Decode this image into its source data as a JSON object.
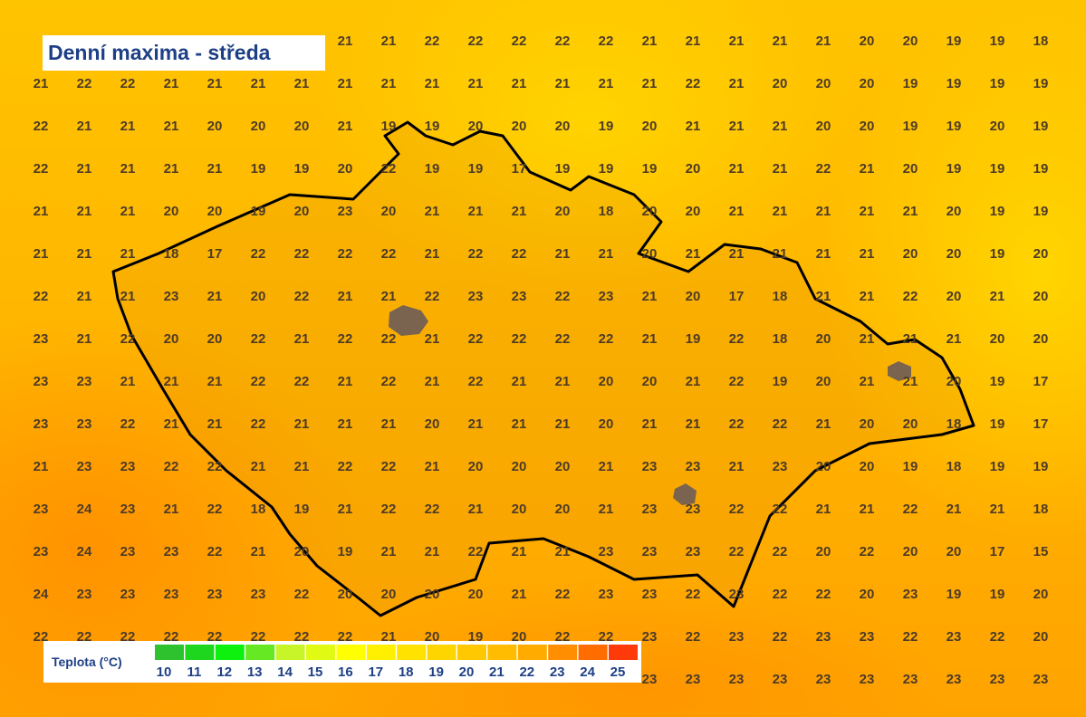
{
  "title": "Denní maxima - středa",
  "grid": {
    "rows": [
      [
        null,
        null,
        null,
        null,
        null,
        null,
        null,
        21,
        21,
        22,
        22,
        22,
        22,
        22,
        21,
        21,
        21,
        21,
        21,
        20,
        20,
        19,
        19,
        18
      ],
      [
        21,
        22,
        22,
        21,
        21,
        21,
        21,
        21,
        21,
        21,
        21,
        21,
        21,
        21,
        21,
        22,
        21,
        20,
        20,
        20,
        19,
        19,
        19,
        19
      ],
      [
        22,
        21,
        21,
        21,
        20,
        20,
        20,
        21,
        19,
        19,
        20,
        20,
        20,
        19,
        20,
        21,
        21,
        21,
        20,
        20,
        19,
        19,
        20,
        19
      ],
      [
        22,
        21,
        21,
        21,
        21,
        19,
        19,
        20,
        22,
        19,
        19,
        17,
        19,
        19,
        19,
        20,
        21,
        21,
        22,
        21,
        20,
        19,
        19,
        19
      ],
      [
        21,
        21,
        21,
        20,
        20,
        19,
        20,
        23,
        20,
        21,
        21,
        21,
        20,
        18,
        20,
        20,
        21,
        21,
        21,
        21,
        21,
        20,
        19,
        19
      ],
      [
        21,
        21,
        21,
        18,
        17,
        22,
        22,
        22,
        22,
        21,
        22,
        22,
        21,
        21,
        20,
        21,
        21,
        21,
        21,
        21,
        20,
        20,
        19,
        20
      ],
      [
        22,
        21,
        21,
        23,
        21,
        20,
        22,
        21,
        21,
        22,
        23,
        23,
        22,
        23,
        21,
        20,
        17,
        18,
        21,
        21,
        22,
        20,
        21,
        20
      ],
      [
        23,
        21,
        22,
        20,
        20,
        22,
        21,
        22,
        22,
        21,
        22,
        22,
        22,
        22,
        21,
        19,
        22,
        18,
        20,
        21,
        21,
        21,
        20,
        20
      ],
      [
        23,
        23,
        21,
        21,
        21,
        22,
        22,
        21,
        22,
        21,
        22,
        21,
        21,
        20,
        20,
        21,
        22,
        19,
        20,
        21,
        21,
        20,
        19,
        17
      ],
      [
        23,
        23,
        22,
        21,
        21,
        22,
        21,
        21,
        21,
        20,
        21,
        21,
        21,
        20,
        21,
        21,
        22,
        22,
        21,
        20,
        20,
        18,
        19,
        17
      ],
      [
        21,
        23,
        23,
        22,
        22,
        21,
        21,
        22,
        22,
        21,
        20,
        20,
        20,
        21,
        23,
        23,
        21,
        23,
        20,
        20,
        19,
        18,
        19,
        19
      ],
      [
        23,
        24,
        23,
        21,
        22,
        18,
        19,
        21,
        22,
        22,
        21,
        20,
        20,
        21,
        23,
        23,
        22,
        22,
        21,
        21,
        22,
        21,
        21,
        18
      ],
      [
        23,
        24,
        23,
        23,
        22,
        21,
        20,
        19,
        21,
        21,
        22,
        21,
        21,
        23,
        23,
        23,
        22,
        22,
        20,
        22,
        20,
        20,
        17,
        15
      ],
      [
        24,
        23,
        23,
        23,
        23,
        23,
        22,
        20,
        20,
        20,
        20,
        21,
        22,
        23,
        23,
        22,
        23,
        22,
        22,
        20,
        23,
        19,
        19,
        20
      ],
      [
        22,
        22,
        22,
        22,
        22,
        22,
        22,
        22,
        21,
        20,
        19,
        20,
        22,
        22,
        23,
        22,
        23,
        22,
        23,
        23,
        22,
        23,
        22,
        20
      ],
      [
        null,
        null,
        null,
        null,
        null,
        null,
        null,
        null,
        null,
        null,
        null,
        null,
        null,
        null,
        23,
        23,
        23,
        23,
        23,
        23,
        23,
        23,
        23,
        23
      ]
    ]
  },
  "legend": {
    "title": "Teplota (°C)",
    "items": [
      {
        "label": 10,
        "color": "#2ec22e"
      },
      {
        "label": 11,
        "color": "#1ed61e"
      },
      {
        "label": 12,
        "color": "#0ef00e"
      },
      {
        "label": 13,
        "color": "#66e822"
      },
      {
        "label": 14,
        "color": "#c8f52a"
      },
      {
        "label": 15,
        "color": "#e0fa14"
      },
      {
        "label": 16,
        "color": "#ffff00"
      },
      {
        "label": 17,
        "color": "#ffef00"
      },
      {
        "label": 18,
        "color": "#ffe200"
      },
      {
        "label": 19,
        "color": "#ffd500"
      },
      {
        "label": 20,
        "color": "#ffc800"
      },
      {
        "label": 21,
        "color": "#ffbc00"
      },
      {
        "label": 22,
        "color": "#ffab00"
      },
      {
        "label": 23,
        "color": "#ff8e00"
      },
      {
        "label": 24,
        "color": "#ff6c00"
      },
      {
        "label": 25,
        "color": "#ff3a0a"
      }
    ]
  }
}
